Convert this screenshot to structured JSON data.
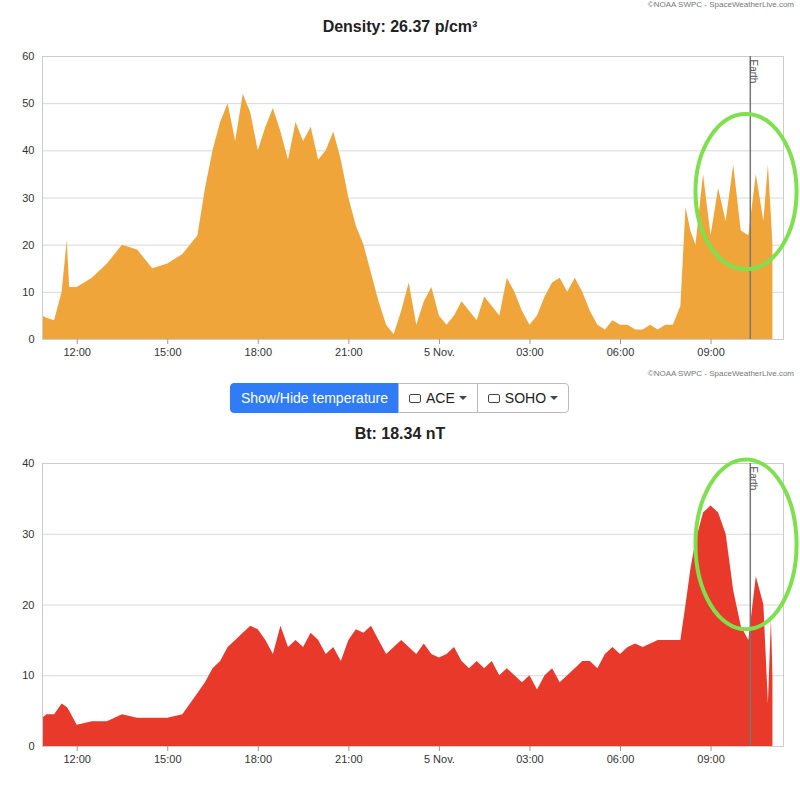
{
  "chart_data": [
    {
      "type": "area",
      "title": "Density: 26.37 p/cm³",
      "source": "©NOAA SWPC - SpaceWeatherLive.com",
      "color": "#f0a53a",
      "grid": true,
      "xlim": [
        10.85,
        35.4
      ],
      "xticks": [
        {
          "value": 12,
          "label": "12:00"
        },
        {
          "value": 15,
          "label": "15:00"
        },
        {
          "value": 18,
          "label": "18:00"
        },
        {
          "value": 21,
          "label": "21:00"
        },
        {
          "value": 24,
          "label": "5 Nov."
        },
        {
          "value": 27,
          "label": "03:00"
        },
        {
          "value": 30,
          "label": "06:00"
        },
        {
          "value": 33,
          "label": "09:00"
        }
      ],
      "ylim": [
        0,
        60
      ],
      "yticks": [
        0,
        10,
        20,
        30,
        40,
        50,
        60
      ],
      "x": [
        10.85,
        11,
        11.25,
        11.5,
        11.67,
        11.75,
        12,
        12.5,
        13,
        13.5,
        14,
        14.5,
        15,
        15.5,
        16,
        16.25,
        16.5,
        16.75,
        17,
        17.25,
        17.5,
        17.75,
        18,
        18.25,
        18.5,
        18.75,
        19,
        19.25,
        19.5,
        19.75,
        20,
        20.25,
        20.5,
        20.75,
        21,
        21.25,
        21.5,
        21.75,
        22,
        22.25,
        22.5,
        22.75,
        23,
        23.25,
        23.5,
        23.75,
        24,
        24.25,
        24.5,
        24.75,
        25,
        25.25,
        25.5,
        25.75,
        26,
        26.25,
        26.5,
        26.75,
        27,
        27.25,
        27.5,
        27.75,
        28,
        28.25,
        28.5,
        28.75,
        29,
        29.25,
        29.5,
        29.75,
        30,
        30.25,
        30.5,
        30.75,
        31,
        31.25,
        31.5,
        31.75,
        32,
        32.17,
        32.33,
        32.5,
        32.75,
        33,
        33.25,
        33.5,
        33.75,
        34,
        34.25,
        34.5,
        34.75,
        34.9,
        35,
        35.05
      ],
      "values": [
        5,
        4.5,
        4,
        10,
        21,
        11,
        11,
        13,
        16,
        20,
        19,
        15,
        16,
        18,
        22,
        32,
        40,
        46,
        50,
        42,
        52,
        48,
        40,
        45,
        49,
        44,
        38,
        46,
        42,
        45,
        38,
        40,
        44,
        38,
        30,
        24,
        20,
        14,
        8,
        3,
        1,
        6,
        12,
        3,
        8,
        11,
        5,
        3,
        5,
        8,
        6,
        4,
        9,
        7,
        5,
        13,
        10,
        6,
        3,
        5,
        9,
        12,
        13,
        10,
        13,
        10,
        6,
        3,
        2,
        4,
        3,
        3,
        2,
        2,
        3,
        2,
        3,
        3,
        7,
        28,
        23,
        20,
        35,
        22,
        32,
        25,
        37,
        23,
        22,
        35,
        25,
        37,
        26,
        20
      ],
      "annotations": [
        {
          "x": 34.3,
          "text": "Earth"
        },
        {
          "shape": "ellipse",
          "x": [
            32.5,
            35.85
          ],
          "y": [
            14.8,
            47.7
          ]
        }
      ]
    },
    {
      "type": "area",
      "title": "Bt: 18.34 nT",
      "source": "©NOAA SWPC - SpaceWeatherLive.com",
      "color": "#e8392b",
      "grid": true,
      "xlim": [
        10.85,
        35.4
      ],
      "xticks": [
        {
          "value": 12,
          "label": "12:00"
        },
        {
          "value": 15,
          "label": "15:00"
        },
        {
          "value": 18,
          "label": "18:00"
        },
        {
          "value": 21,
          "label": "21:00"
        },
        {
          "value": 24,
          "label": "5 Nov."
        },
        {
          "value": 27,
          "label": "03:00"
        },
        {
          "value": 30,
          "label": "06:00"
        },
        {
          "value": 33,
          "label": "09:00"
        }
      ],
      "ylim": [
        0,
        40
      ],
      "yticks": [
        0,
        10,
        20,
        30,
        40
      ],
      "x": [
        10.85,
        11,
        11.25,
        11.5,
        11.67,
        11.75,
        12,
        12.5,
        13,
        13.5,
        14,
        14.5,
        15,
        15.5,
        16,
        16.25,
        16.5,
        16.75,
        17,
        17.25,
        17.5,
        17.75,
        18,
        18.25,
        18.5,
        18.75,
        19,
        19.25,
        19.5,
        19.75,
        20,
        20.25,
        20.5,
        20.75,
        21,
        21.25,
        21.5,
        21.75,
        22,
        22.25,
        22.5,
        22.75,
        23,
        23.25,
        23.5,
        23.75,
        24,
        24.25,
        24.5,
        24.75,
        25,
        25.25,
        25.5,
        25.75,
        26,
        26.25,
        26.5,
        26.75,
        27,
        27.25,
        27.5,
        27.75,
        28,
        28.25,
        28.5,
        28.75,
        29,
        29.25,
        29.5,
        29.75,
        30,
        30.25,
        30.5,
        30.75,
        31,
        31.25,
        31.5,
        31.75,
        32,
        32.17,
        32.33,
        32.5,
        32.75,
        33,
        33.25,
        33.5,
        33.75,
        34,
        34.25,
        34.5,
        34.75,
        34.9,
        35,
        35.05
      ],
      "values": [
        4,
        4.5,
        4.5,
        6,
        5.5,
        5,
        3,
        3.5,
        3.5,
        4.5,
        4,
        4,
        4,
        4.5,
        7.5,
        9,
        11,
        12,
        14,
        15,
        16,
        17,
        16.5,
        15,
        13,
        17,
        14,
        15,
        14,
        16,
        15,
        13,
        14,
        12,
        15,
        16.5,
        16,
        17,
        15,
        13,
        14,
        15,
        14,
        13,
        14.5,
        13,
        12.5,
        13,
        14,
        12,
        11,
        12,
        11,
        12,
        10,
        11,
        10,
        9,
        10,
        8,
        10,
        11,
        9,
        10,
        11,
        12,
        12,
        11,
        13,
        14,
        13,
        14,
        14.5,
        14,
        14.5,
        15,
        15,
        15,
        15,
        20,
        25,
        29,
        33,
        34,
        33,
        30,
        22,
        17,
        15,
        24,
        20,
        6,
        18,
        10
      ],
      "annotations": [
        {
          "x": 34.3,
          "text": "Earth"
        },
        {
          "shape": "ellipse",
          "x": [
            32.5,
            35.85
          ],
          "y": [
            16.5,
            40.5
          ]
        }
      ]
    }
  ],
  "controls": [
    "Show/Hide temperature",
    "ACE",
    "SOHO"
  ]
}
